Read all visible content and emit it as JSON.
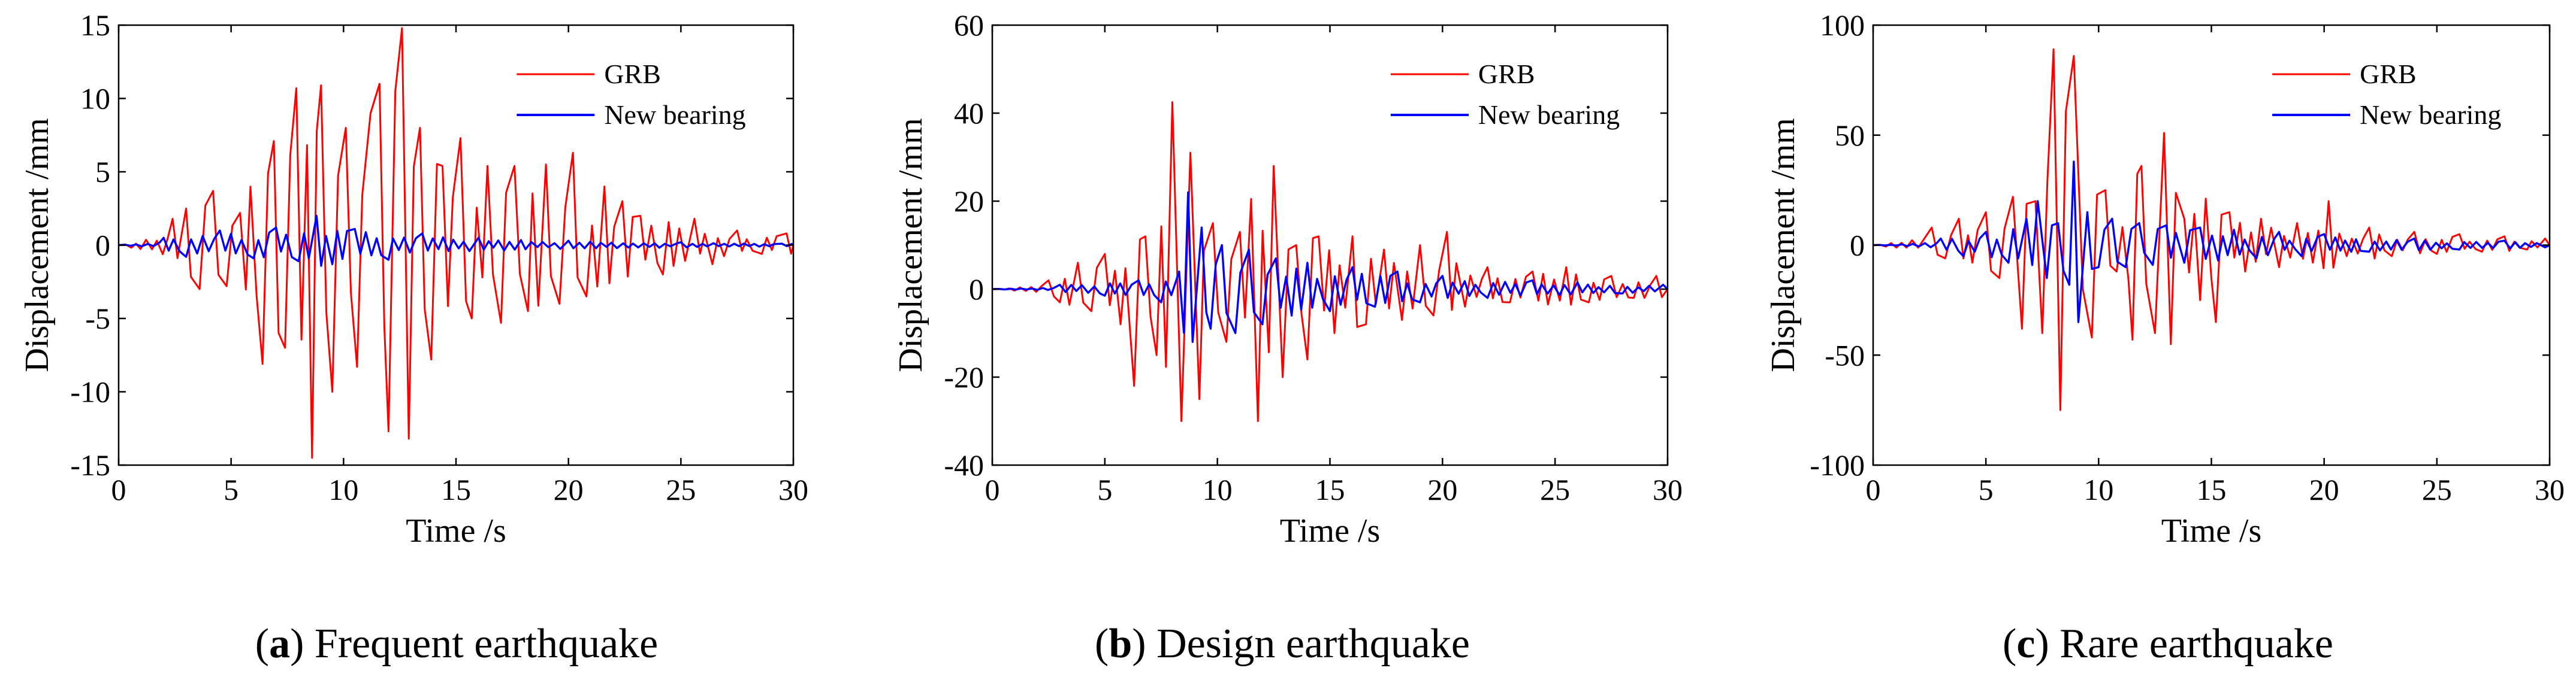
{
  "colors": {
    "grb": "#ff0000",
    "new": "#0000ff"
  },
  "chart_data": [
    {
      "type": "line",
      "caption_letter": "a",
      "caption_text": ") Frequent earthquake",
      "caption_open": "(",
      "xlabel": "Time /s",
      "ylabel": "Displacement /mm",
      "xlim": [
        0,
        30
      ],
      "ylim": [
        -15,
        15
      ],
      "xticks": [
        0,
        5,
        10,
        15,
        20,
        25,
        30
      ],
      "yticks": [
        -15,
        -10,
        -5,
        0,
        5,
        10,
        15
      ],
      "series": [
        {
          "name": "GRB",
          "color": "#ff0000",
          "peaks": [
            [
              2.4,
              1.8
            ],
            [
              3.0,
              2.5
            ],
            [
              3.6,
              -3.0
            ],
            [
              4.2,
              3.7
            ],
            [
              4.8,
              -2.8
            ],
            [
              5.4,
              2.2
            ],
            [
              6.4,
              -8.1
            ],
            [
              6.9,
              7.1
            ],
            [
              7.4,
              -7.0
            ],
            [
              7.9,
              10.7
            ],
            [
              8.6,
              -14.5
            ],
            [
              9.0,
              10.9
            ],
            [
              9.5,
              -10.0
            ],
            [
              10.1,
              8.0
            ],
            [
              10.6,
              -8.3
            ],
            [
              11.2,
              9.0
            ],
            [
              11.6,
              11.0
            ],
            [
              12.0,
              -12.7
            ],
            [
              12.3,
              10.5
            ],
            [
              12.6,
              14.8
            ],
            [
              12.9,
              -13.2
            ],
            [
              13.4,
              8.0
            ],
            [
              13.9,
              -7.8
            ],
            [
              14.4,
              5.4
            ],
            [
              15.2,
              7.3
            ],
            [
              15.7,
              -5.0
            ],
            [
              16.4,
              5.4
            ],
            [
              17.0,
              -5.3
            ],
            [
              17.6,
              5.4
            ],
            [
              18.2,
              -4.5
            ],
            [
              19.0,
              5.5
            ],
            [
              19.6,
              -4.0
            ],
            [
              20.2,
              6.3
            ],
            [
              20.8,
              -3.5
            ],
            [
              21.6,
              4.0
            ],
            [
              22.4,
              3.0
            ],
            [
              23.2,
              2.0
            ],
            [
              24.2,
              -2.0
            ],
            [
              25.6,
              1.8
            ],
            [
              26.4,
              -1.3
            ],
            [
              27.5,
              1.0
            ],
            [
              28.6,
              -0.6
            ],
            [
              29.7,
              0.8
            ]
          ]
        },
        {
          "name": "New bearing",
          "color": "#0000ff",
          "peaks": [
            [
              2.0,
              0.5
            ],
            [
              3.0,
              -0.8
            ],
            [
              4.5,
              1.0
            ],
            [
              6.0,
              -0.9
            ],
            [
              7.0,
              1.2
            ],
            [
              8.0,
              -1.1
            ],
            [
              8.8,
              2.0
            ],
            [
              9.5,
              -1.3
            ],
            [
              10.5,
              1.1
            ],
            [
              12.0,
              -1.0
            ],
            [
              13.5,
              0.8
            ],
            [
              16.0,
              0.5
            ],
            [
              20.0,
              0.3
            ],
            [
              25.0,
              0.2
            ],
            [
              29.5,
              0.1
            ]
          ]
        }
      ]
    },
    {
      "type": "line",
      "caption_letter": "b",
      "caption_text": ") Design earthquake",
      "caption_open": "(",
      "xlabel": "Time /s",
      "ylabel": "Displacement /mm",
      "xlim": [
        0,
        30
      ],
      "ylim": [
        -40,
        60
      ],
      "xticks": [
        0,
        5,
        10,
        15,
        20,
        25,
        30
      ],
      "yticks": [
        -40,
        -20,
        0,
        20,
        40,
        60
      ],
      "series": [
        {
          "name": "GRB",
          "color": "#ff0000",
          "peaks": [
            [
              2.5,
              2.0
            ],
            [
              3.0,
              -3.0
            ],
            [
              3.8,
              6.0
            ],
            [
              4.4,
              -5.0
            ],
            [
              5.0,
              8.0
            ],
            [
              5.7,
              -8.0
            ],
            [
              6.3,
              -22.0
            ],
            [
              6.8,
              12.0
            ],
            [
              7.3,
              -15.0
            ],
            [
              8.0,
              42.5
            ],
            [
              8.4,
              -30.0
            ],
            [
              8.8,
              31.0
            ],
            [
              9.2,
              -25.0
            ],
            [
              9.8,
              15.0
            ],
            [
              10.4,
              -12.0
            ],
            [
              11.0,
              13.0
            ],
            [
              11.5,
              20.5
            ],
            [
              11.8,
              -30.0
            ],
            [
              12.5,
              28.0
            ],
            [
              12.9,
              -20.0
            ],
            [
              13.5,
              10.0
            ],
            [
              14.0,
              -16.0
            ],
            [
              14.5,
              12.0
            ],
            [
              15.2,
              -10.0
            ],
            [
              16.0,
              12.0
            ],
            [
              16.6,
              -8.0
            ],
            [
              17.4,
              9.0
            ],
            [
              18.2,
              -7.0
            ],
            [
              19.0,
              10.0
            ],
            [
              19.6,
              -6.0
            ],
            [
              20.2,
              13.0
            ],
            [
              21.0,
              -4.0
            ],
            [
              22.0,
              5.0
            ],
            [
              23.0,
              -3.0
            ],
            [
              24.0,
              4.0
            ],
            [
              25.5,
              5.0
            ],
            [
              26.5,
              -3.0
            ],
            [
              27.5,
              3.0
            ],
            [
              28.5,
              -2.0
            ],
            [
              29.5,
              3.0
            ]
          ]
        },
        {
          "name": "New bearing",
          "color": "#0000ff",
          "peaks": [
            [
              3.0,
              1.0
            ],
            [
              5.0,
              -1.5
            ],
            [
              6.5,
              2.0
            ],
            [
              7.5,
              -3.0
            ],
            [
              8.3,
              4.0
            ],
            [
              8.7,
              22.0
            ],
            [
              8.9,
              -12.0
            ],
            [
              9.3,
              14.0
            ],
            [
              9.7,
              -9.0
            ],
            [
              10.2,
              10.0
            ],
            [
              10.8,
              -10.0
            ],
            [
              11.4,
              9.0
            ],
            [
              12.0,
              -8.0
            ],
            [
              12.6,
              7.0
            ],
            [
              13.3,
              -6.0
            ],
            [
              14.0,
              6.0
            ],
            [
              15.0,
              -5.0
            ],
            [
              16.0,
              5.0
            ],
            [
              17.0,
              -4.0
            ],
            [
              18.0,
              4.0
            ],
            [
              19.0,
              -3.0
            ],
            [
              20.0,
              3.0
            ],
            [
              22.0,
              -2.0
            ],
            [
              24.0,
              2.0
            ],
            [
              26.0,
              1.5
            ],
            [
              28.0,
              -1.0
            ],
            [
              29.8,
              1.0
            ]
          ]
        }
      ]
    },
    {
      "type": "line",
      "caption_letter": "c",
      "caption_text": ") Rare earthquake",
      "caption_open": "(",
      "xlabel": "Time /s",
      "ylabel": "Displacement /mm",
      "xlim": [
        0,
        30
      ],
      "ylim": [
        -100,
        100
      ],
      "xticks": [
        0,
        5,
        10,
        15,
        20,
        25,
        30
      ],
      "yticks": [
        -100,
        -50,
        0,
        50,
        100
      ],
      "series": [
        {
          "name": "GRB",
          "color": "#ff0000",
          "peaks": [
            [
              2.6,
              8.0
            ],
            [
              3.2,
              -6.0
            ],
            [
              3.8,
              12.0
            ],
            [
              4.4,
              -8.0
            ],
            [
              5.0,
              15.0
            ],
            [
              5.6,
              -15.0
            ],
            [
              6.2,
              22.0
            ],
            [
              6.6,
              -38.0
            ],
            [
              7.2,
              20.0
            ],
            [
              7.5,
              -40.0
            ],
            [
              8.0,
              89.0
            ],
            [
              8.3,
              -75.0
            ],
            [
              8.9,
              86.0
            ],
            [
              9.3,
              -20.0
            ],
            [
              9.7,
              -42.0
            ],
            [
              10.3,
              25.0
            ],
            [
              10.8,
              -12.0
            ],
            [
              11.5,
              -43.0
            ],
            [
              11.9,
              36.0
            ],
            [
              12.5,
              -40.0
            ],
            [
              12.9,
              51.0
            ],
            [
              13.2,
              -45.0
            ],
            [
              13.8,
              12.0
            ],
            [
              14.5,
              -25.0
            ],
            [
              15.2,
              -35.0
            ],
            [
              15.8,
              15.0
            ],
            [
              16.5,
              -12.0
            ],
            [
              17.2,
              12.0
            ],
            [
              18.0,
              -10.0
            ],
            [
              18.8,
              10.0
            ],
            [
              19.5,
              -8.0
            ],
            [
              20.2,
              20.0
            ],
            [
              21.0,
              -5.0
            ],
            [
              22.0,
              8.0
            ],
            [
              23.0,
              -5.0
            ],
            [
              24.0,
              6.0
            ],
            [
              25.0,
              -4.0
            ],
            [
              26.0,
              5.0
            ],
            [
              27.0,
              -3.0
            ],
            [
              28.0,
              4.0
            ],
            [
              29.0,
              -2.0
            ],
            [
              29.8,
              3.0
            ]
          ]
        },
        {
          "name": "New bearing",
          "color": "#0000ff",
          "peaks": [
            [
              3.0,
              3.0
            ],
            [
              4.0,
              -5.0
            ],
            [
              5.0,
              6.0
            ],
            [
              6.0,
              -8.0
            ],
            [
              6.8,
              12.0
            ],
            [
              7.3,
              20.0
            ],
            [
              7.7,
              -15.0
            ],
            [
              8.2,
              10.0
            ],
            [
              8.7,
              -18.0
            ],
            [
              8.9,
              38.0
            ],
            [
              9.1,
              -35.0
            ],
            [
              9.5,
              15.0
            ],
            [
              10.0,
              -10.0
            ],
            [
              10.6,
              12.0
            ],
            [
              11.2,
              -10.0
            ],
            [
              11.8,
              10.0
            ],
            [
              12.4,
              -9.0
            ],
            [
              13.0,
              9.0
            ],
            [
              13.8,
              -8.0
            ],
            [
              14.5,
              8.0
            ],
            [
              15.3,
              -7.0
            ],
            [
              16.0,
              7.0
            ],
            [
              17.0,
              -6.0
            ],
            [
              18.0,
              6.0
            ],
            [
              19.0,
              -5.0
            ],
            [
              20.0,
              5.0
            ],
            [
              22.0,
              -3.0
            ],
            [
              24.0,
              3.0
            ],
            [
              26.0,
              -2.0
            ],
            [
              28.0,
              2.0
            ],
            [
              29.8,
              -1.0
            ]
          ]
        }
      ]
    }
  ]
}
